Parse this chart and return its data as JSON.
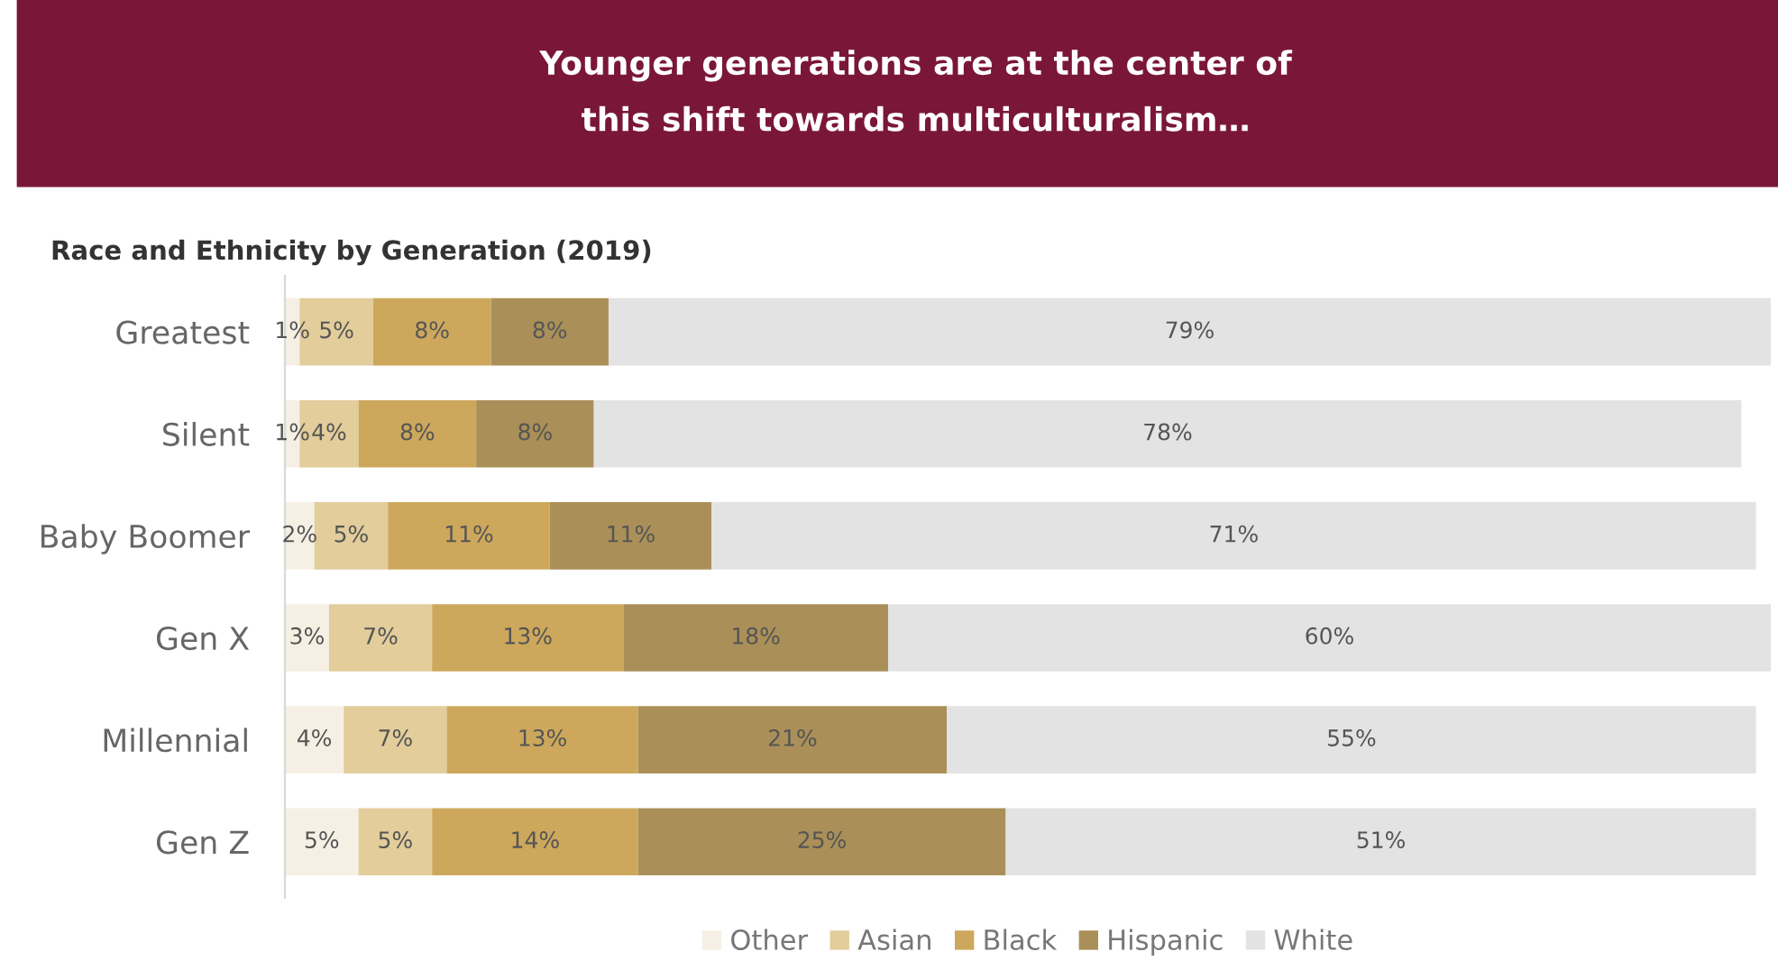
{
  "chart_data": {
    "type": "bar",
    "orientation": "horizontal",
    "stacked": true,
    "title": "Younger generations are at the center of\nthis shift towards multiculturalism…",
    "subtitle": "Race and Ethnicity by Generation (2019)",
    "categories": [
      "Greatest",
      "Silent",
      "Baby Boomer",
      "Gen X",
      "Millennial",
      "Gen Z"
    ],
    "series": [
      {
        "name": "Other",
        "color": "#f5f0e3",
        "values": [
          1,
          1,
          2,
          3,
          4,
          5
        ],
        "value_labels": [
          "1%",
          "1%",
          "2%",
          "3%",
          "4%",
          "5%"
        ]
      },
      {
        "name": "Asian",
        "color": "#e2cd9b",
        "values": [
          5,
          4,
          5,
          7,
          7,
          5
        ],
        "value_labels": [
          "5%",
          "4%",
          "5%",
          "7%",
          "7%",
          "5%"
        ]
      },
      {
        "name": "Black",
        "color": "#cda85c",
        "values": [
          8,
          8,
          11,
          13,
          13,
          14
        ],
        "value_labels": [
          "8%",
          "8%",
          "11%",
          "13%",
          "13%",
          "14%"
        ]
      },
      {
        "name": "Hispanic",
        "color": "#aa9058",
        "values": [
          8,
          8,
          11,
          18,
          21,
          25
        ],
        "value_labels": [
          "8%",
          "8%",
          "11%",
          "18%",
          "21%",
          "25%"
        ]
      },
      {
        "name": "White",
        "color": "#e3e3e3",
        "values": [
          79,
          78,
          71,
          60,
          55,
          51
        ],
        "value_labels": [
          "79%",
          "78%",
          "71%",
          "60%",
          "55%",
          "51%"
        ]
      }
    ],
    "legend": "bottom",
    "grid": false
  }
}
